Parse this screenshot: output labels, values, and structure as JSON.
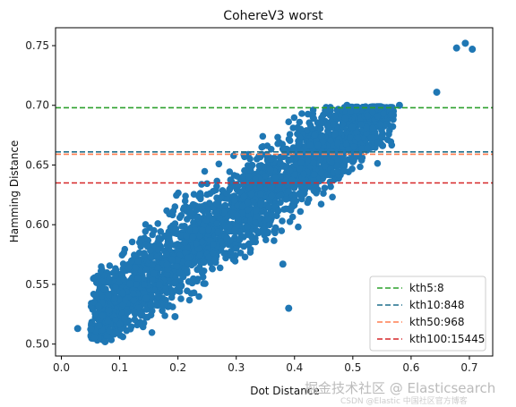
{
  "chart_data": {
    "type": "scatter",
    "title": "CohereV3 worst",
    "xlabel": "Dot Distance",
    "ylabel": "Hamming Distance",
    "xlim": [
      -0.01,
      0.74
    ],
    "ylim": [
      0.49,
      0.765
    ],
    "xticks": [
      "0.0",
      "0.1",
      "0.2",
      "0.3",
      "0.4",
      "0.5",
      "0.6",
      "0.7"
    ],
    "yticks": [
      "0.50",
      "0.55",
      "0.60",
      "0.65",
      "0.70",
      "0.75"
    ],
    "point_color": "#1f77b4",
    "cloud": {
      "description_points": [
        {
          "x": 0.03,
          "y": 0.513
        },
        {
          "x": 0.05,
          "y": 0.528
        },
        {
          "x": 0.1,
          "y": 0.555
        },
        {
          "x": 0.2,
          "y": 0.59
        },
        {
          "x": 0.3,
          "y": 0.625
        },
        {
          "x": 0.4,
          "y": 0.655
        },
        {
          "x": 0.5,
          "y": 0.685
        },
        {
          "x": 0.55,
          "y": 0.695
        }
      ]
    },
    "outliers": [
      {
        "x": 0.678,
        "y": 0.748
      },
      {
        "x": 0.693,
        "y": 0.752
      },
      {
        "x": 0.705,
        "y": 0.747
      },
      {
        "x": 0.644,
        "y": 0.711
      },
      {
        "x": 0.58,
        "y": 0.7
      },
      {
        "x": 0.49,
        "y": 0.7
      },
      {
        "x": 0.075,
        "y": 0.502
      },
      {
        "x": 0.028,
        "y": 0.513
      },
      {
        "x": 0.39,
        "y": 0.53
      },
      {
        "x": 0.195,
        "y": 0.523
      },
      {
        "x": 0.38,
        "y": 0.567
      }
    ],
    "hlines": [
      {
        "name": "kth5:8",
        "y": 0.698,
        "color": "#2ca02c"
      },
      {
        "name": "kth10:848",
        "y": 0.661,
        "color": "#1f6f8b"
      },
      {
        "name": "kth50:968",
        "y": 0.659,
        "color": "#ff7f50"
      },
      {
        "name": "kth100:15445",
        "y": 0.635,
        "color": "#d62728"
      }
    ],
    "legend_position": "lower-right",
    "grid": false
  },
  "watermark": {
    "main": "掘金技术社区 @ Elasticsearch",
    "sub": "CSDN @Elastic 中国社区官方博客"
  }
}
